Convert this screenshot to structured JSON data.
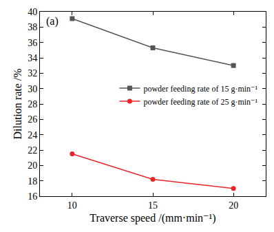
{
  "chart_data": {
    "type": "line",
    "panel_label": "(a)",
    "x_label": "Traverse speed /(mm·min⁻¹)",
    "y_label": "Dilution rate /%",
    "x": [
      10,
      15,
      20
    ],
    "series": [
      {
        "name": "powder feeding rate of 15 g·min⁻¹",
        "color": "#555555",
        "marker": "square",
        "values": [
          39.1,
          35.3,
          33.0
        ]
      },
      {
        "name": "powder feeding rate of 25 g·min⁻¹",
        "color": "#e8252b",
        "marker": "circle",
        "values": [
          21.5,
          18.2,
          17.0
        ]
      }
    ],
    "xlim": [
      8,
      22
    ],
    "xticks": [
      10,
      15,
      20
    ],
    "ylim": [
      16,
      40
    ],
    "yticks": [
      16,
      18,
      20,
      22,
      24,
      26,
      28,
      30,
      32,
      34,
      36,
      38,
      40
    ],
    "grid": false,
    "legend": "right"
  }
}
